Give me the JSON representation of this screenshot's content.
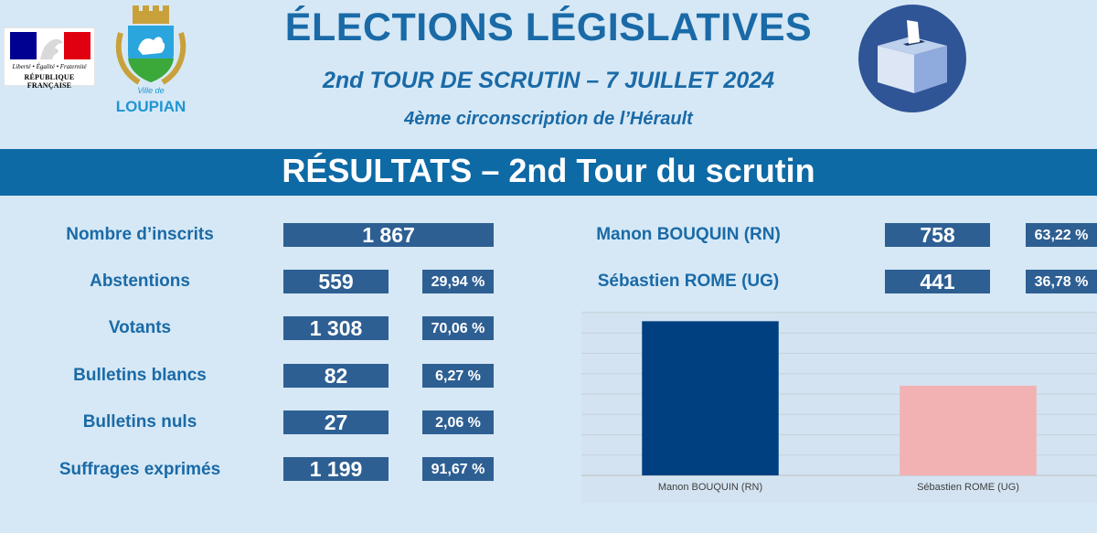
{
  "header": {
    "title": "ÉLECTIONS LÉGISLATIVES",
    "subtitle": "2nd TOUR DE SCRUTIN – 7 JUILLET 2024",
    "circonscription": "4ème circonscription de l’Hérault",
    "logo_rf": {
      "motto": "Liberté • Égalité • Fraternité",
      "name": "RÉPUBLIQUE FRANÇAISE"
    },
    "logo_town": {
      "prefix": "Ville de",
      "name": "LOUPIAN"
    },
    "ballot_icon": "ballot-box-icon"
  },
  "banner": "RÉSULTATS – 2nd Tour du scrutin",
  "stats": [
    {
      "label": "Nombre d’inscrits",
      "value": "1 867",
      "pct": ""
    },
    {
      "label": "Abstentions",
      "value": "559",
      "pct": "29,94 %"
    },
    {
      "label": "Votants",
      "value": "1 308",
      "pct": "70,06 %"
    },
    {
      "label": "Bulletins blancs",
      "value": "82",
      "pct": "6,27 %"
    },
    {
      "label": "Bulletins nuls",
      "value": "27",
      "pct": "2,06 %"
    },
    {
      "label": "Suffrages exprimés",
      "value": "1 199",
      "pct": "91,67 %"
    }
  ],
  "candidates": [
    {
      "label": "Manon BOUQUIN (RN)",
      "votes": "758",
      "pct": "63,22 %"
    },
    {
      "label": "Sébastien ROME (UG)",
      "votes": "441",
      "pct": "36,78 %"
    }
  ],
  "colors": {
    "title": "#1a6aa7",
    "banner": "#0e6aa5",
    "box": "#2e5f93",
    "bar_rn": "#004080",
    "bar_ug": "#f2b1b3",
    "background": "#d6e8f5"
  },
  "chart_data": {
    "type": "bar",
    "categories": [
      "Manon BOUQUIN (RN)",
      "Sébastien ROME (UG)"
    ],
    "values": [
      758,
      441
    ],
    "ylim": [
      0,
      800
    ],
    "grid": true,
    "legend": "none",
    "colors": [
      "#004080",
      "#f2b1b3"
    ]
  }
}
